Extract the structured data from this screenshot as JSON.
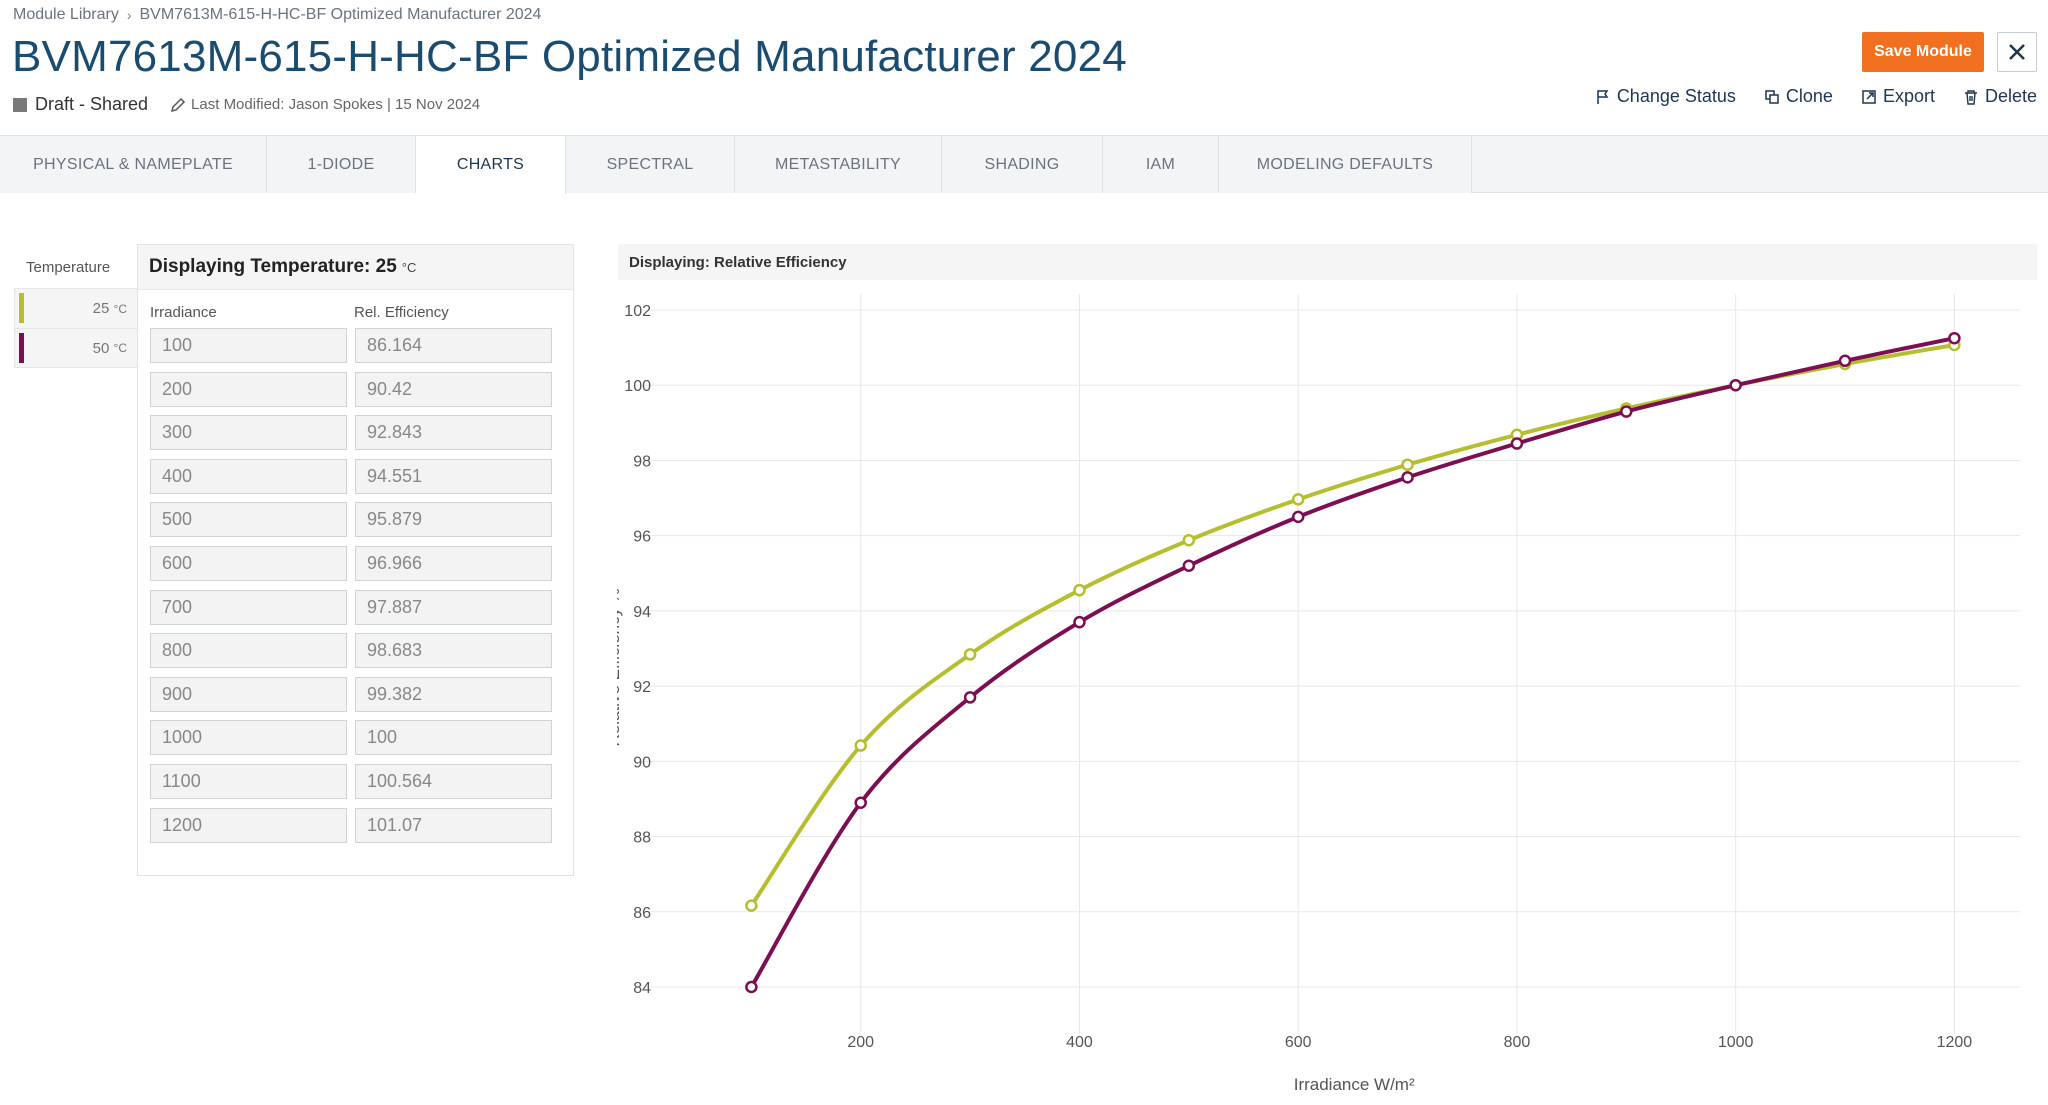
{
  "breadcrumb": {
    "root": "Module Library",
    "current": "BVM7613M-615-H-HC-BF Optimized Manufacturer 2024"
  },
  "title": "BVM7613M-615-H-HC-BF Optimized Manufacturer 2024",
  "status": {
    "label": "Draft - Shared",
    "modified": "Last Modified: Jason Spokes | 15 Nov 2024"
  },
  "actions": {
    "save": "Save Module",
    "change_status": "Change Status",
    "clone": "Clone",
    "export": "Export",
    "delete": "Delete"
  },
  "tabs": [
    "PHYSICAL & NAMEPLATE",
    "1-DIODE",
    "CHARTS",
    "SPECTRAL",
    "METASTABILITY",
    "SHADING",
    "IAM",
    "MODELING DEFAULTS"
  ],
  "active_tab": "CHARTS",
  "temperature": {
    "header": "Temperature",
    "items": [
      {
        "value": "25",
        "unit": "°C",
        "color": "#b5be2e"
      },
      {
        "value": "50",
        "unit": "°C",
        "color": "#7b0f52"
      }
    ]
  },
  "panel": {
    "heading": "Displaying Temperature: 25",
    "heading_unit": "°C",
    "col_irradiance": "Irradiance",
    "col_efficiency": "Rel. Efficiency",
    "rows": [
      [
        "100",
        "86.164"
      ],
      [
        "200",
        "90.42"
      ],
      [
        "300",
        "92.843"
      ],
      [
        "400",
        "94.551"
      ],
      [
        "500",
        "95.879"
      ],
      [
        "600",
        "96.966"
      ],
      [
        "700",
        "97.887"
      ],
      [
        "800",
        "98.683"
      ],
      [
        "900",
        "99.382"
      ],
      [
        "1000",
        "100"
      ],
      [
        "1100",
        "100.564"
      ],
      [
        "1200",
        "101.07"
      ]
    ]
  },
  "chart_header": "Displaying: Relative Efficiency",
  "chart_data": {
    "type": "line",
    "xlabel": "Irradiance W/m²",
    "ylabel": "Relative Efficiency %",
    "xlim": [
      0,
      1260
    ],
    "ylim": [
      84,
      102
    ],
    "x_ticks": [
      200,
      400,
      600,
      800,
      1000,
      1200
    ],
    "y_ticks": [
      84,
      86,
      88,
      90,
      92,
      94,
      96,
      98,
      100,
      102
    ],
    "grid": true,
    "x": [
      100,
      200,
      300,
      400,
      500,
      600,
      700,
      800,
      900,
      1000,
      1100,
      1200
    ],
    "series": [
      {
        "color": "#b5be2e",
        "values": [
          86.164,
          90.42,
          92.843,
          94.551,
          95.879,
          96.966,
          97.887,
          98.683,
          99.382,
          100,
          100.564,
          101.07
        ]
      },
      {
        "color": "#7b0f52",
        "values": [
          84.0,
          88.9,
          91.7,
          93.7,
          95.2,
          96.5,
          97.55,
          98.45,
          99.3,
          100,
          100.65,
          101.25
        ]
      }
    ]
  }
}
